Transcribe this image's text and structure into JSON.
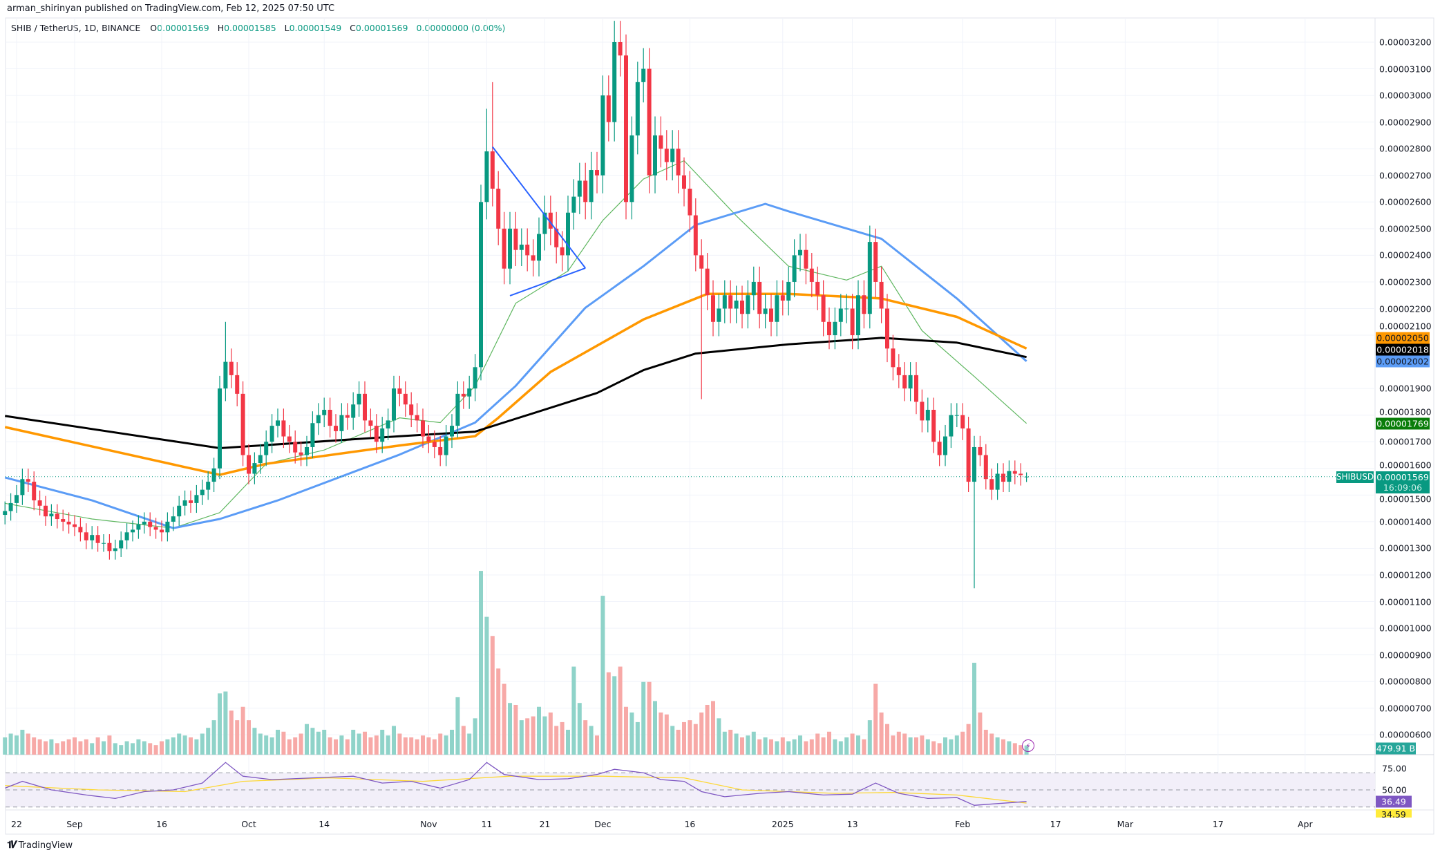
{
  "header": {
    "published": "arman_shirinyan published on TradingView.com, Feb 12, 2025 07:50 UTC"
  },
  "legend": {
    "symbol": "SHIB / TetherUS, 1D, BINANCE",
    "o_label": "O",
    "o": "0.00001569",
    "h_label": "H",
    "h": "0.00001585",
    "l_label": "L",
    "l": "0.00001549",
    "c_label": "C",
    "c": "0.00001569",
    "change": "0.00000000 (0.00%)"
  },
  "colors": {
    "up": "#089981",
    "down": "#f23645",
    "vol_up": "#8fd3c9",
    "vol_down": "#f7a9a7",
    "ma20": "#5fb760",
    "ma50": "#5b9cf6",
    "ma100": "#ff9800",
    "ma200": "#000000",
    "rsi": "#7e57c2",
    "rsi_ma": "#fdd835",
    "drawing": "#2962ff"
  },
  "chart_data": {
    "type": "candlestick",
    "symbol_tag": "SHIBUSDT",
    "start_date": "2024-08-20",
    "close": [
      1.44e-05,
      1.47e-05,
      1.5e-05,
      1.56e-05,
      1.55e-05,
      1.48e-05,
      1.46e-05,
      1.42e-05,
      1.43e-05,
      1.41e-05,
      1.4e-05,
      1.39e-05,
      1.38e-05,
      1.36e-05,
      1.33e-05,
      1.35e-05,
      1.32e-05,
      1.32e-05,
      1.29e-05,
      1.3e-05,
      1.33e-05,
      1.36e-05,
      1.37e-05,
      1.39e-05,
      1.4e-05,
      1.38e-05,
      1.37e-05,
      1.36e-05,
      1.4e-05,
      1.42e-05,
      1.46e-05,
      1.48e-05,
      1.47e-05,
      1.5e-05,
      1.52e-05,
      1.55e-05,
      1.6e-05,
      1.9e-05,
      2e-05,
      1.95e-05,
      1.88e-05,
      1.65e-05,
      1.58e-05,
      1.62e-05,
      1.65e-05,
      1.7e-05,
      1.76e-05,
      1.78e-05,
      1.72e-05,
      1.7e-05,
      1.66e-05,
      1.65e-05,
      1.68e-05,
      1.77e-05,
      1.8e-05,
      1.82e-05,
      1.76e-05,
      1.74e-05,
      1.8e-05,
      1.79e-05,
      1.84e-05,
      1.88e-05,
      1.78e-05,
      1.76e-05,
      1.7e-05,
      1.75e-05,
      1.78e-05,
      1.9e-05,
      1.88e-05,
      1.84e-05,
      1.8e-05,
      1.78e-05,
      1.72e-05,
      1.7e-05,
      1.68e-05,
      1.65e-05,
      1.72e-05,
      1.76e-05,
      1.88e-05,
      1.87e-05,
      1.9e-05,
      1.98e-05,
      2.6e-05,
      2.79e-05,
      2.65e-05,
      2.5e-05,
      2.35e-05,
      2.5e-05,
      2.42e-05,
      2.44e-05,
      2.4e-05,
      2.38e-05,
      2.48e-05,
      2.56e-05,
      2.5e-05,
      2.43e-05,
      2.4e-05,
      2.56e-05,
      2.62e-05,
      2.68e-05,
      2.6e-05,
      2.72e-05,
      2.7e-05,
      3e-05,
      2.9e-05,
      3.2e-05,
      3.15e-05,
      2.6e-05,
      2.85e-05,
      3.05e-05,
      3.1e-05,
      2.7e-05,
      2.85e-05,
      2.8e-05,
      2.75e-05,
      2.8e-05,
      2.7e-05,
      2.65e-05,
      2.55e-05,
      2.4e-05,
      2.35e-05,
      2.25e-05,
      2.15e-05,
      2.2e-05,
      2.25e-05,
      2.2e-05,
      2.23e-05,
      2.18e-05,
      2.25e-05,
      2.3e-05,
      2.18e-05,
      2.2e-05,
      2.15e-05,
      2.25e-05,
      2.23e-05,
      2.3e-05,
      2.4e-05,
      2.42e-05,
      2.35e-05,
      2.3e-05,
      2.25e-05,
      2.15e-05,
      2.1e-05,
      2.15e-05,
      2.2e-05,
      2.2e-05,
      2.1e-05,
      2.25e-05,
      2.18e-05,
      2.45e-05,
      2.3e-05,
      2.2e-05,
      2.05e-05,
      1.98e-05,
      1.95e-05,
      1.9e-05,
      1.95e-05,
      1.85e-05,
      1.78e-05,
      1.82e-05,
      1.7e-05,
      1.65e-05,
      1.72e-05,
      1.8e-05,
      1.8e-05,
      1.75e-05,
      1.55e-05,
      1.68e-05,
      1.65e-05,
      1.56e-05,
      1.52e-05,
      1.58e-05,
      1.55e-05,
      1.59e-05,
      1.58e-05,
      1.575e-05,
      1.569e-05
    ],
    "wick_overrides": {
      "2024-09-27": {
        "high": 2.15e-05
      },
      "2024-11-11": {
        "high": 2.95e-05
      },
      "2024-11-12": {
        "high": 3.05e-05
      },
      "2024-12-18": {
        "low": 1.86e-05
      },
      "2025-01-17": {
        "high": 2.5e-05
      },
      "2025-02-03": {
        "low": 1.15e-05
      },
      "2025-02-12": {
        "open": 1.569e-05,
        "high": 1.585e-05,
        "low": 1.549e-05
      }
    },
    "volume_unit": "B",
    "volume": [
      900,
      1100,
      1000,
      1300,
      1100,
      900,
      800,
      700,
      800,
      600,
      700,
      800,
      900,
      700,
      800,
      600,
      900,
      700,
      1000,
      600,
      500,
      700,
      600,
      800,
      700,
      600,
      500,
      700,
      800,
      900,
      1100,
      1000,
      900,
      800,
      1100,
      1400,
      1800,
      3200,
      3300,
      2300,
      1800,
      2500,
      1800,
      1400,
      1100,
      1000,
      900,
      1300,
      1200,
      800,
      900,
      1100,
      1600,
      1400,
      1200,
      1300,
      900,
      800,
      1000,
      800,
      1300,
      1100,
      1200,
      900,
      1000,
      1300,
      1000,
      1500,
      1100,
      900,
      900,
      800,
      1000,
      900,
      800,
      1100,
      1000,
      1300,
      3000,
      1500,
      1100,
      1900,
      9600,
      7200,
      6200,
      4500,
      3700,
      2700,
      2600,
      1800,
      1900,
      2000,
      2500,
      2000,
      2200,
      1500,
      1700,
      1300,
      4600,
      2700,
      1800,
      1500,
      1000,
      8300,
      4300,
      4100,
      4600,
      2500,
      2200,
      1700,
      3800,
      3800,
      2800,
      2200,
      2100,
      1500,
      1300,
      1700,
      1800,
      1600,
      2200,
      2600,
      2800,
      1900,
      1200,
      1300,
      1100,
      900,
      1000,
      1200,
      800,
      900,
      800,
      700,
      900,
      700,
      800,
      1000,
      700,
      800,
      1100,
      900,
      1200,
      800,
      700,
      900,
      1100,
      1000,
      800,
      1800,
      3700,
      2200,
      1600,
      1000,
      1200,
      1100,
      900,
      900,
      1000,
      800,
      700,
      600,
      900,
      800,
      1000,
      1200,
      1600,
      4800,
      2200,
      1300,
      1100,
      900,
      800,
      700,
      600,
      500,
      479.91
    ],
    "moving_averages": [
      {
        "key": "ma20",
        "points": [
          [
            "2024-08-20",
            1.469e-05
          ],
          [
            "2024-09-04",
            1.41e-05
          ],
          [
            "2024-09-18",
            1.376e-05
          ],
          [
            "2024-09-26",
            1.434e-05
          ],
          [
            "2024-10-04",
            1.617e-05
          ],
          [
            "2024-10-14",
            1.669e-05
          ],
          [
            "2024-10-27",
            1.79e-05
          ],
          [
            "2024-11-03",
            1.772e-05
          ],
          [
            "2024-11-09",
            1.91e-05
          ],
          [
            "2024-11-16",
            2.22e-05
          ],
          [
            "2024-11-25",
            2.341e-05
          ],
          [
            "2024-12-01",
            2.531e-05
          ],
          [
            "2024-12-08",
            2.686e-05
          ],
          [
            "2024-12-15",
            2.755e-05
          ],
          [
            "2024-12-24",
            2.548e-05
          ],
          [
            "2025-01-02",
            2.359e-05
          ],
          [
            "2025-01-12",
            2.307e-05
          ],
          [
            "2025-01-18",
            2.359e-05
          ],
          [
            "2025-01-25",
            2.117e-05
          ],
          [
            "2025-02-03",
            1.945e-05
          ],
          [
            "2025-02-12",
            1.769e-05
          ]
        ]
      },
      {
        "key": "ma50",
        "points": [
          [
            "2024-08-20",
            1.566e-05
          ],
          [
            "2024-09-04",
            1.48e-05
          ],
          [
            "2024-09-18",
            1.376e-05
          ],
          [
            "2024-09-26",
            1.41e-05
          ],
          [
            "2024-10-06",
            1.48e-05
          ],
          [
            "2024-10-27",
            1.652e-05
          ],
          [
            "2024-11-09",
            1.772e-05
          ],
          [
            "2024-11-16",
            1.91e-05
          ],
          [
            "2024-11-28",
            2.203e-05
          ],
          [
            "2024-12-08",
            2.359e-05
          ],
          [
            "2024-12-17",
            2.514e-05
          ],
          [
            "2024-12-29",
            2.593e-05
          ],
          [
            "2025-01-02",
            2.565e-05
          ],
          [
            "2025-01-18",
            2.462e-05
          ],
          [
            "2025-01-31",
            2.238e-05
          ],
          [
            "2025-02-12",
            2.002e-05
          ]
        ]
      },
      {
        "key": "ma100",
        "points": [
          [
            "2024-08-20",
            1.755e-05
          ],
          [
            "2024-09-26",
            1.576e-05
          ],
          [
            "2024-10-04",
            1.617e-05
          ],
          [
            "2024-10-27",
            1.686e-05
          ],
          [
            "2024-11-09",
            1.721e-05
          ],
          [
            "2024-11-13",
            1.79e-05
          ],
          [
            "2024-11-22",
            1.962e-05
          ],
          [
            "2024-12-08",
            2.159e-05
          ],
          [
            "2024-12-19",
            2.255e-05
          ],
          [
            "2025-01-02",
            2.255e-05
          ],
          [
            "2025-01-18",
            2.238e-05
          ],
          [
            "2025-01-31",
            2.169e-05
          ],
          [
            "2025-02-12",
            2.05e-05
          ]
        ]
      },
      {
        "key": "ma200",
        "points": [
          [
            "2024-08-20",
            1.797e-05
          ],
          [
            "2024-09-26",
            1.676e-05
          ],
          [
            "2024-10-27",
            1.721e-05
          ],
          [
            "2024-11-09",
            1.738e-05
          ],
          [
            "2024-11-30",
            1.883e-05
          ],
          [
            "2024-12-08",
            1.969e-05
          ],
          [
            "2024-12-17",
            2.031e-05
          ],
          [
            "2025-01-02",
            2.066e-05
          ],
          [
            "2025-01-18",
            2.09e-05
          ],
          [
            "2025-01-31",
            2.072e-05
          ],
          [
            "2025-02-12",
            2.018e-05
          ]
        ]
      }
    ],
    "drawings": [
      {
        "type": "trendline",
        "points": [
          [
            "2024-11-12",
            2.807e-05
          ],
          [
            "2024-11-28",
            2.352e-05
          ]
        ]
      },
      {
        "type": "trendline",
        "points": [
          [
            "2024-11-15",
            2.248e-05
          ],
          [
            "2024-11-28",
            2.352e-05
          ]
        ]
      }
    ],
    "price_ticks": [
      "0.00003200",
      "0.00003100",
      "0.00003000",
      "0.00002900",
      "0.00002800",
      "0.00002700",
      "0.00002600",
      "0.00002500",
      "0.00002400",
      "0.00002300",
      "0.00002200",
      "0.00002100",
      "0.00001900",
      "0.00001800",
      "0.00001700",
      "0.00001600",
      "0.00001500",
      "0.00001400",
      "0.00001300",
      "0.00001200",
      "0.00001100",
      "0.00001000",
      "0.00000900",
      "0.00000800",
      "0.00000700",
      "0.00000600"
    ],
    "price_tags": [
      {
        "value": "0.00002050",
        "bg": "#ff9800",
        "fg": "#131722"
      },
      {
        "value": "0.00002018",
        "bg": "#000000",
        "fg": "#ffffff"
      },
      {
        "value": "0.00002002",
        "bg": "#5b9cf6",
        "fg": "#131722"
      },
      {
        "value": "0.00001769",
        "bg": "#0a7d0a",
        "fg": "#ffffff"
      }
    ],
    "current": {
      "price": "0.00001569",
      "countdown": "16:09:06"
    },
    "volume_tag": "479.91 B",
    "time_ticks": [
      [
        "2024-08-22",
        "22"
      ],
      [
        "2024-09-01",
        "Sep"
      ],
      [
        "2024-09-16",
        "16"
      ],
      [
        "2024-10-01",
        "Oct"
      ],
      [
        "2024-10-14",
        "14"
      ],
      [
        "2024-11-01",
        "Nov"
      ],
      [
        "2024-11-11",
        "11"
      ],
      [
        "2024-11-21",
        "21"
      ],
      [
        "2024-12-01",
        "Dec"
      ],
      [
        "2024-12-16",
        "16"
      ],
      [
        "2025-01-01",
        "2025"
      ],
      [
        "2025-01-13",
        "13"
      ],
      [
        "2025-02-01",
        "Feb"
      ],
      [
        "2025-02-17",
        "17"
      ],
      [
        "2025-03-01",
        "Mar"
      ],
      [
        "2025-03-17",
        "17"
      ],
      [
        "2025-04-01",
        "Apr"
      ]
    ],
    "rsi": {
      "ticks": [
        "75.00",
        "50.00"
      ],
      "bands": [
        70,
        50,
        30
      ],
      "value_tag": "36.49",
      "ma_tag": "34.59",
      "line": [
        [
          "2024-08-20",
          52
        ],
        [
          "2024-08-23",
          60
        ],
        [
          "2024-08-28",
          50
        ],
        [
          "2024-09-03",
          44
        ],
        [
          "2024-09-08",
          40
        ],
        [
          "2024-09-13",
          48
        ],
        [
          "2024-09-18",
          50
        ],
        [
          "2024-09-23",
          58
        ],
        [
          "2024-09-27",
          82
        ],
        [
          "2024-09-30",
          66
        ],
        [
          "2024-10-05",
          62
        ],
        [
          "2024-10-12",
          64
        ],
        [
          "2024-10-19",
          66
        ],
        [
          "2024-10-24",
          58
        ],
        [
          "2024-10-29",
          60
        ],
        [
          "2024-11-03",
          52
        ],
        [
          "2024-11-08",
          62
        ],
        [
          "2024-11-11",
          82
        ],
        [
          "2024-11-14",
          68
        ],
        [
          "2024-11-20",
          62
        ],
        [
          "2024-11-25",
          63
        ],
        [
          "2024-11-30",
          68
        ],
        [
          "2024-12-03",
          74
        ],
        [
          "2024-12-08",
          70
        ],
        [
          "2024-12-11",
          62
        ],
        [
          "2024-12-15",
          60
        ],
        [
          "2024-12-18",
          48
        ],
        [
          "2024-12-22",
          42
        ],
        [
          "2024-12-28",
          46
        ],
        [
          "2025-01-02",
          48
        ],
        [
          "2025-01-08",
          44
        ],
        [
          "2025-01-13",
          45
        ],
        [
          "2025-01-17",
          58
        ],
        [
          "2025-01-21",
          46
        ],
        [
          "2025-01-26",
          40
        ],
        [
          "2025-01-31",
          41
        ],
        [
          "2025-02-03",
          32
        ],
        [
          "2025-02-07",
          34
        ],
        [
          "2025-02-12",
          36.49
        ]
      ],
      "ma": [
        [
          "2024-08-20",
          55
        ],
        [
          "2024-09-05",
          50
        ],
        [
          "2024-09-20",
          48
        ],
        [
          "2024-09-30",
          60
        ],
        [
          "2024-10-15",
          64
        ],
        [
          "2024-10-31",
          60
        ],
        [
          "2024-11-15",
          66
        ],
        [
          "2024-12-01",
          66
        ],
        [
          "2024-12-15",
          64
        ],
        [
          "2024-12-25",
          50
        ],
        [
          "2025-01-10",
          46
        ],
        [
          "2025-01-20",
          47
        ],
        [
          "2025-01-31",
          44
        ],
        [
          "2025-02-12",
          34.59
        ]
      ]
    }
  },
  "footer": {
    "brand": "TradingView",
    "brand_mark": "TV"
  }
}
